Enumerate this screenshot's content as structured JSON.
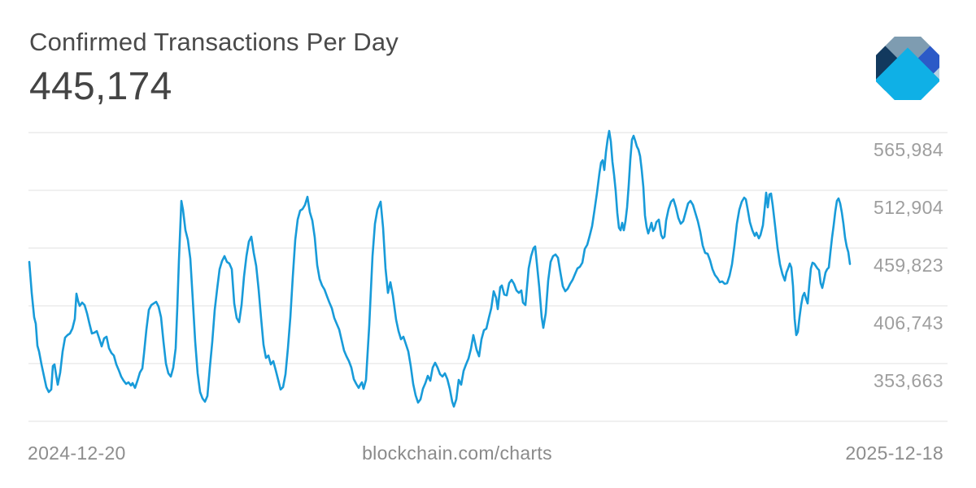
{
  "header": {
    "title": "Confirmed Transactions Per Day",
    "value": "445,174"
  },
  "logo": {
    "icon": "blockchain-diamond-logo",
    "colors": {
      "slate": "#7e9cb1",
      "navy": "#12395e",
      "royal": "#2c5ac7",
      "pale": "#b8d2e2",
      "cyan": "#0fb0e6"
    }
  },
  "footer": {
    "start_date": "2024-12-20",
    "site": "blockchain.com/charts",
    "end_date": "2025-12-18"
  },
  "chart_data": {
    "type": "line",
    "title": "Confirmed Transactions Per Day",
    "latest_value": 445174,
    "x_start": "2024-12-20",
    "x_end": "2025-12-18",
    "xlabel": "",
    "ylabel": "Confirmed transactions per day",
    "legend": "none",
    "grid": "horizontal-only",
    "y_ticks": [
      {
        "value": 565984,
        "label": "565,984"
      },
      {
        "value": 512904,
        "label": "512,904"
      },
      {
        "value": 459823,
        "label": "459,823"
      },
      {
        "value": 406743,
        "label": "406,743"
      },
      {
        "value": 353663,
        "label": "353,663"
      }
    ],
    "line_color": "#189bd9",
    "grid_color": "#e2e2e2",
    "tick_color": "#9e9e9e",
    "plot": {
      "x_left": 35,
      "x_right": 1165,
      "label_right_x": 1160,
      "y_top_gridline": 163,
      "gridline_count": 6,
      "gridline_spacing_px": 71,
      "value_at_top_gridline": 565984,
      "value_step_per_gridline": 53080.5,
      "line_width": 2.6
    },
    "points": [
      [
        36,
        447100
      ],
      [
        39,
        418600
      ],
      [
        42,
        396200
      ],
      [
        44,
        390200
      ],
      [
        46,
        370000
      ],
      [
        48,
        364800
      ],
      [
        51,
        352900
      ],
      [
        54,
        342400
      ],
      [
        57,
        332000
      ],
      [
        60,
        327500
      ],
      [
        63,
        329800
      ],
      [
        65,
        351400
      ],
      [
        67,
        352900
      ],
      [
        69,
        343200
      ],
      [
        71,
        334200
      ],
      [
        74,
        345400
      ],
      [
        77,
        364800
      ],
      [
        80,
        377500
      ],
      [
        83,
        379800
      ],
      [
        86,
        381300
      ],
      [
        89,
        385800
      ],
      [
        92,
        394700
      ],
      [
        94,
        417900
      ],
      [
        96,
        411200
      ],
      [
        98,
        406700
      ],
      [
        101,
        409700
      ],
      [
        104,
        407400
      ],
      [
        107,
        399900
      ],
      [
        110,
        390200
      ],
      [
        113,
        381300
      ],
      [
        116,
        382100
      ],
      [
        119,
        383500
      ],
      [
        122,
        376800
      ],
      [
        125,
        369400
      ],
      [
        128,
        376800
      ],
      [
        131,
        378300
      ],
      [
        134,
        367800
      ],
      [
        137,
        363400
      ],
      [
        140,
        361100
      ],
      [
        143,
        352900
      ],
      [
        146,
        347600
      ],
      [
        149,
        341700
      ],
      [
        152,
        337900
      ],
      [
        155,
        335000
      ],
      [
        158,
        336400
      ],
      [
        161,
        333500
      ],
      [
        163,
        335700
      ],
      [
        166,
        331300
      ],
      [
        169,
        337900
      ],
      [
        172,
        345400
      ],
      [
        175,
        349100
      ],
      [
        177,
        362500
      ],
      [
        180,
        385000
      ],
      [
        183,
        403000
      ],
      [
        186,
        407400
      ],
      [
        189,
        408900
      ],
      [
        192,
        410400
      ],
      [
        195,
        405900
      ],
      [
        198,
        396200
      ],
      [
        201,
        373800
      ],
      [
        204,
        353700
      ],
      [
        207,
        344700
      ],
      [
        210,
        341700
      ],
      [
        213,
        349900
      ],
      [
        216,
        367800
      ],
      [
        218,
        405200
      ],
      [
        220,
        448600
      ],
      [
        223,
        503200
      ],
      [
        225,
        495000
      ],
      [
        228,
        476200
      ],
      [
        231,
        467300
      ],
      [
        234,
        450100
      ],
      [
        237,
        412700
      ],
      [
        240,
        373800
      ],
      [
        243,
        344700
      ],
      [
        246,
        327500
      ],
      [
        249,
        321600
      ],
      [
        252,
        318600
      ],
      [
        255,
        323800
      ],
      [
        258,
        349900
      ],
      [
        261,
        373800
      ],
      [
        264,
        403000
      ],
      [
        267,
        422400
      ],
      [
        270,
        440400
      ],
      [
        273,
        447900
      ],
      [
        276,
        452400
      ],
      [
        279,
        447100
      ],
      [
        282,
        445600
      ],
      [
        285,
        440400
      ],
      [
        288,
        408900
      ],
      [
        291,
        395500
      ],
      [
        294,
        391700
      ],
      [
        297,
        407400
      ],
      [
        300,
        433600
      ],
      [
        303,
        452400
      ],
      [
        306,
        465800
      ],
      [
        309,
        470300
      ],
      [
        312,
        455300
      ],
      [
        315,
        443400
      ],
      [
        318,
        421700
      ],
      [
        321,
        395500
      ],
      [
        324,
        370900
      ],
      [
        327,
        358800
      ],
      [
        330,
        361100
      ],
      [
        333,
        352900
      ],
      [
        336,
        355900
      ],
      [
        339,
        347600
      ],
      [
        342,
        338700
      ],
      [
        345,
        329800
      ],
      [
        348,
        332000
      ],
      [
        351,
        343900
      ],
      [
        354,
        367800
      ],
      [
        357,
        396200
      ],
      [
        360,
        433600
      ],
      [
        363,
        467300
      ],
      [
        366,
        486000
      ],
      [
        369,
        494200
      ],
      [
        372,
        495700
      ],
      [
        375,
        499500
      ],
      [
        378,
        506900
      ],
      [
        381,
        492700
      ],
      [
        384,
        485200
      ],
      [
        387,
        469500
      ],
      [
        390,
        444100
      ],
      [
        393,
        431400
      ],
      [
        396,
        425400
      ],
      [
        399,
        421700
      ],
      [
        402,
        415600
      ],
      [
        405,
        409700
      ],
      [
        408,
        404500
      ],
      [
        411,
        395500
      ],
      [
        414,
        390200
      ],
      [
        417,
        385000
      ],
      [
        420,
        375300
      ],
      [
        423,
        365600
      ],
      [
        426,
        360300
      ],
      [
        429,
        355900
      ],
      [
        432,
        349900
      ],
      [
        435,
        339400
      ],
      [
        438,
        335000
      ],
      [
        441,
        331300
      ],
      [
        443,
        334200
      ],
      [
        445,
        336400
      ],
      [
        447,
        330500
      ],
      [
        450,
        338700
      ],
      [
        454,
        388800
      ],
      [
        458,
        452400
      ],
      [
        461,
        482200
      ],
      [
        464,
        495000
      ],
      [
        468,
        502400
      ],
      [
        471,
        478500
      ],
      [
        474,
        441100
      ],
      [
        477,
        418600
      ],
      [
        480,
        428400
      ],
      [
        483,
        416400
      ],
      [
        487,
        394000
      ],
      [
        490,
        383500
      ],
      [
        493,
        376000
      ],
      [
        496,
        378300
      ],
      [
        499,
        371600
      ],
      [
        502,
        364800
      ],
      [
        505,
        351400
      ],
      [
        508,
        335000
      ],
      [
        511,
        324500
      ],
      [
        514,
        317800
      ],
      [
        517,
        320800
      ],
      [
        520,
        330500
      ],
      [
        523,
        335700
      ],
      [
        526,
        342400
      ],
      [
        529,
        337900
      ],
      [
        532,
        349900
      ],
      [
        535,
        354400
      ],
      [
        538,
        349900
      ],
      [
        541,
        343900
      ],
      [
        544,
        341700
      ],
      [
        547,
        344700
      ],
      [
        550,
        339400
      ],
      [
        553,
        330500
      ],
      [
        556,
        318600
      ],
      [
        558,
        314100
      ],
      [
        561,
        320800
      ],
      [
        564,
        338700
      ],
      [
        567,
        334200
      ],
      [
        570,
        346900
      ],
      [
        573,
        352900
      ],
      [
        576,
        358200
      ],
      [
        579,
        367100
      ],
      [
        582,
        379800
      ],
      [
        586,
        366300
      ],
      [
        589,
        360300
      ],
      [
        592,
        376000
      ],
      [
        595,
        384300
      ],
      [
        598,
        385800
      ],
      [
        601,
        395500
      ],
      [
        604,
        404500
      ],
      [
        607,
        420100
      ],
      [
        610,
        414100
      ],
      [
        612,
        403700
      ],
      [
        615,
        423900
      ],
      [
        617,
        425400
      ],
      [
        620,
        417100
      ],
      [
        623,
        416400
      ],
      [
        626,
        427600
      ],
      [
        629,
        430600
      ],
      [
        632,
        426900
      ],
      [
        635,
        420900
      ],
      [
        638,
        418600
      ],
      [
        641,
        420900
      ],
      [
        643,
        409700
      ],
      [
        646,
        407400
      ],
      [
        650,
        441100
      ],
      [
        653,
        452400
      ],
      [
        656,
        459800
      ],
      [
        658,
        461300
      ],
      [
        660,
        446400
      ],
      [
        663,
        423900
      ],
      [
        666,
        396200
      ],
      [
        668,
        386500
      ],
      [
        671,
        399900
      ],
      [
        674,
        429900
      ],
      [
        677,
        447100
      ],
      [
        680,
        452400
      ],
      [
        683,
        453900
      ],
      [
        686,
        450900
      ],
      [
        689,
        437400
      ],
      [
        692,
        424600
      ],
      [
        695,
        420100
      ],
      [
        698,
        422400
      ],
      [
        701,
        426900
      ],
      [
        704,
        430600
      ],
      [
        707,
        435900
      ],
      [
        710,
        441100
      ],
      [
        713,
        442600
      ],
      [
        716,
        446400
      ],
      [
        719,
        459100
      ],
      [
        722,
        462800
      ],
      [
        725,
        471000
      ],
      [
        728,
        480000
      ],
      [
        731,
        495000
      ],
      [
        734,
        510700
      ],
      [
        737,
        528600
      ],
      [
        739,
        538300
      ],
      [
        741,
        540600
      ],
      [
        743,
        531600
      ],
      [
        745,
        548000
      ],
      [
        747,
        559300
      ],
      [
        749,
        567500
      ],
      [
        751,
        557800
      ],
      [
        753,
        539100
      ],
      [
        755,
        527100
      ],
      [
        757,
        512200
      ],
      [
        759,
        492000
      ],
      [
        761,
        478500
      ],
      [
        763,
        476200
      ],
      [
        765,
        483000
      ],
      [
        767,
        476200
      ],
      [
        769,
        484500
      ],
      [
        771,
        497200
      ],
      [
        773,
        517400
      ],
      [
        775,
        541300
      ],
      [
        777,
        559300
      ],
      [
        779,
        563000
      ],
      [
        781,
        558500
      ],
      [
        783,
        553300
      ],
      [
        785,
        550300
      ],
      [
        787,
        544300
      ],
      [
        789,
        531600
      ],
      [
        791,
        515900
      ],
      [
        793,
        489700
      ],
      [
        795,
        479300
      ],
      [
        797,
        473200
      ],
      [
        799,
        477800
      ],
      [
        801,
        483000
      ],
      [
        803,
        475500
      ],
      [
        805,
        477800
      ],
      [
        807,
        483700
      ],
      [
        810,
        486000
      ],
      [
        813,
        471800
      ],
      [
        815,
        468800
      ],
      [
        817,
        470300
      ],
      [
        819,
        485200
      ],
      [
        822,
        495700
      ],
      [
        825,
        502400
      ],
      [
        828,
        504700
      ],
      [
        831,
        497200
      ],
      [
        834,
        487500
      ],
      [
        837,
        482200
      ],
      [
        840,
        484500
      ],
      [
        843,
        492700
      ],
      [
        846,
        500900
      ],
      [
        849,
        503200
      ],
      [
        852,
        499500
      ],
      [
        855,
        492000
      ],
      [
        858,
        484500
      ],
      [
        861,
        474700
      ],
      [
        864,
        462100
      ],
      [
        867,
        455300
      ],
      [
        870,
        454600
      ],
      [
        873,
        448600
      ],
      [
        876,
        440400
      ],
      [
        879,
        435100
      ],
      [
        882,
        432200
      ],
      [
        885,
        428400
      ],
      [
        888,
        429200
      ],
      [
        891,
        426900
      ],
      [
        894,
        427600
      ],
      [
        897,
        434400
      ],
      [
        900,
        444900
      ],
      [
        903,
        462100
      ],
      [
        906,
        482200
      ],
      [
        909,
        495000
      ],
      [
        912,
        502400
      ],
      [
        915,
        506200
      ],
      [
        917,
        504700
      ],
      [
        919,
        496500
      ],
      [
        922,
        483700
      ],
      [
        925,
        476200
      ],
      [
        928,
        471000
      ],
      [
        930,
        474000
      ],
      [
        933,
        468800
      ],
      [
        935,
        471800
      ],
      [
        938,
        480700
      ],
      [
        940,
        495000
      ],
      [
        942,
        510700
      ],
      [
        944,
        497200
      ],
      [
        946,
        509200
      ],
      [
        948,
        509900
      ],
      [
        950,
        499500
      ],
      [
        953,
        480000
      ],
      [
        956,
        459800
      ],
      [
        959,
        444900
      ],
      [
        962,
        435900
      ],
      [
        965,
        429900
      ],
      [
        967,
        437400
      ],
      [
        969,
        441100
      ],
      [
        971,
        445600
      ],
      [
        973,
        441900
      ],
      [
        975,
        425000
      ],
      [
        977,
        395000
      ],
      [
        979,
        379800
      ],
      [
        981,
        382800
      ],
      [
        983,
        396200
      ],
      [
        985,
        407400
      ],
      [
        987,
        415600
      ],
      [
        989,
        418600
      ],
      [
        991,
        413400
      ],
      [
        993,
        408900
      ],
      [
        995,
        426100
      ],
      [
        997,
        441100
      ],
      [
        999,
        446400
      ],
      [
        1001,
        445600
      ],
      [
        1003,
        443400
      ],
      [
        1005,
        441100
      ],
      [
        1007,
        439600
      ],
      [
        1009,
        427600
      ],
      [
        1011,
        423200
      ],
      [
        1013,
        429900
      ],
      [
        1015,
        437400
      ],
      [
        1017,
        440400
      ],
      [
        1019,
        441900
      ],
      [
        1021,
        456100
      ],
      [
        1023,
        469500
      ],
      [
        1025,
        480700
      ],
      [
        1027,
        493500
      ],
      [
        1029,
        503200
      ],
      [
        1031,
        505400
      ],
      [
        1033,
        500900
      ],
      [
        1035,
        492700
      ],
      [
        1037,
        482200
      ],
      [
        1039,
        469500
      ],
      [
        1041,
        461300
      ],
      [
        1043,
        456100
      ],
      [
        1045,
        445174
      ]
    ]
  }
}
